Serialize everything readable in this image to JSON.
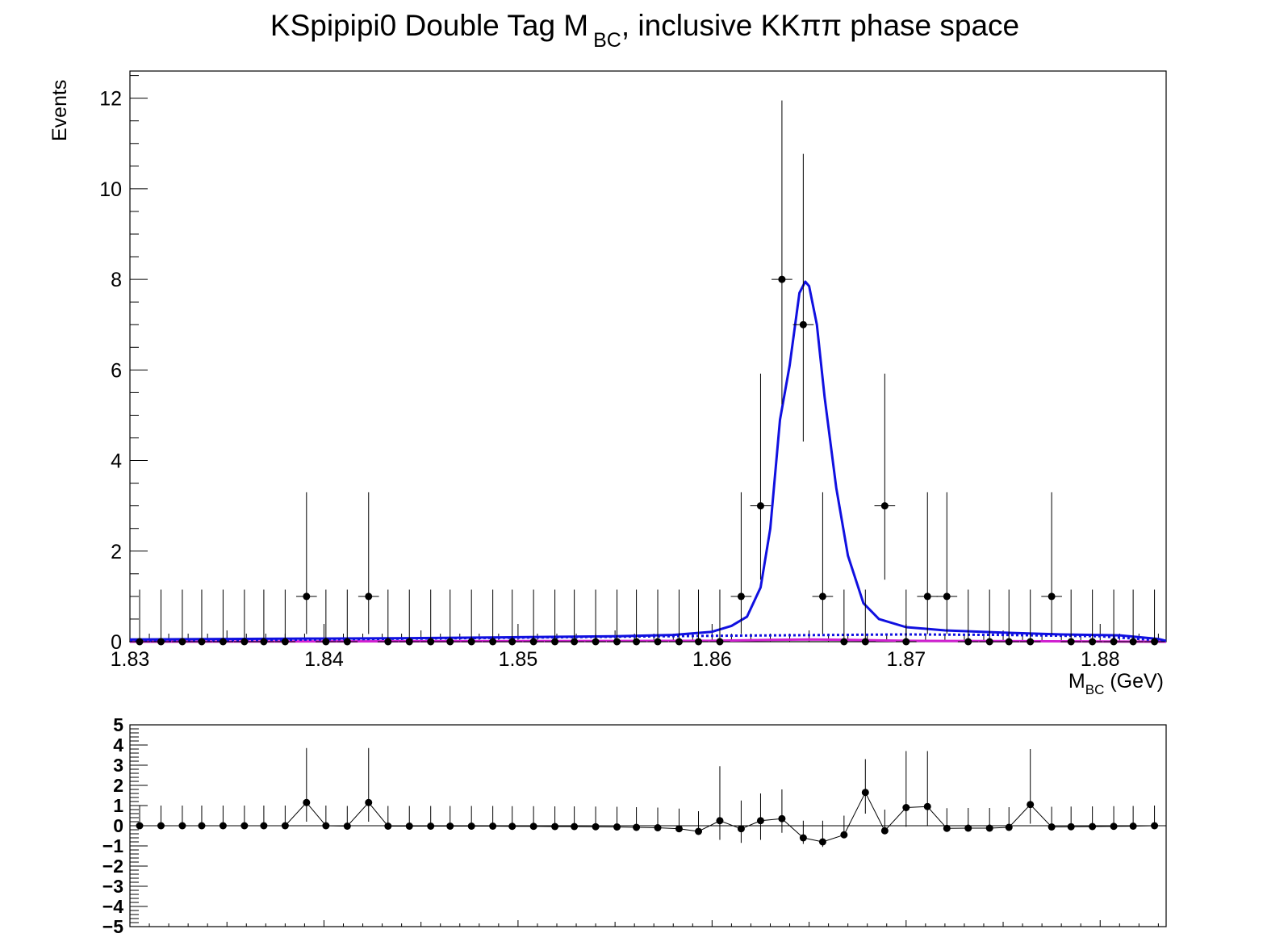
{
  "chart_data": [
    {
      "type": "scatter",
      "title": {
        "prefix": "KSpipipi0 Double Tag M",
        "subscript": "BC",
        "suffix": ", inclusive KKππ phase space"
      },
      "xlabel": {
        "main": "M",
        "subscript": "BC",
        "unit": " (GeV)"
      },
      "ylabel": "Events",
      "xlim": [
        1.83,
        1.8834
      ],
      "ylim": [
        0,
        12.6
      ],
      "x_ticks": [
        "1.83",
        "1.84",
        "1.85",
        "1.86",
        "1.87",
        "1.88"
      ],
      "y_ticks": [
        "0",
        "2",
        "4",
        "6",
        "8",
        "10",
        "12"
      ],
      "bin_half_width": 0.000534,
      "x": [
        1.8305,
        1.8316,
        1.8327,
        1.8337,
        1.8348,
        1.8359,
        1.8369,
        1.838,
        1.8391,
        1.8401,
        1.8412,
        1.8423,
        1.8433,
        1.8444,
        1.8455,
        1.8465,
        1.8476,
        1.8487,
        1.8497,
        1.8508,
        1.8519,
        1.8529,
        1.854,
        1.8551,
        1.8561,
        1.8572,
        1.8583,
        1.8593,
        1.8604,
        1.8615,
        1.8625,
        1.8636,
        1.8647,
        1.8657,
        1.8668,
        1.8679,
        1.8689,
        1.87,
        1.8711,
        1.8721,
        1.8732,
        1.8743,
        1.8753,
        1.8764,
        1.8775,
        1.8785,
        1.8796,
        1.8807,
        1.8817,
        1.8828
      ],
      "y": [
        0,
        0,
        0,
        0,
        0,
        0,
        0,
        0,
        1,
        0,
        0,
        1,
        0,
        0,
        0,
        0,
        0,
        0,
        0,
        0,
        0,
        0,
        0,
        0,
        0,
        0,
        0,
        0,
        0,
        1,
        3,
        8,
        7,
        1,
        0,
        0,
        3,
        0,
        1,
        1,
        0,
        0,
        0,
        0,
        1,
        0,
        0,
        0,
        0,
        0
      ],
      "y_err_low": [
        0,
        0,
        0,
        0,
        0,
        0,
        0,
        0,
        0.83,
        0,
        0,
        0.83,
        0,
        0,
        0,
        0,
        0,
        0,
        0,
        0,
        0,
        0,
        0,
        0,
        0,
        0,
        0,
        0,
        0,
        0.83,
        1.63,
        2.76,
        2.58,
        0.83,
        0,
        0,
        1.63,
        0,
        0.83,
        0.83,
        0,
        0,
        0,
        0,
        0.83,
        0,
        0,
        0,
        0,
        0
      ],
      "y_err_high": [
        1.15,
        1.15,
        1.15,
        1.15,
        1.15,
        1.15,
        1.15,
        1.15,
        2.3,
        1.15,
        1.15,
        2.3,
        1.15,
        1.15,
        1.15,
        1.15,
        1.15,
        1.15,
        1.15,
        1.15,
        1.15,
        1.15,
        1.15,
        1.15,
        1.15,
        1.15,
        1.15,
        1.15,
        1.15,
        2.3,
        2.92,
        3.95,
        3.77,
        2.3,
        1.15,
        1.15,
        2.92,
        1.15,
        2.3,
        2.3,
        1.15,
        1.15,
        1.15,
        1.15,
        2.3,
        1.15,
        1.15,
        1.15,
        1.15,
        1.15
      ],
      "fit_total": {
        "color": "#1010e0",
        "x": [
          1.83,
          1.835,
          1.84,
          1.845,
          1.85,
          1.855,
          1.858,
          1.86,
          1.861,
          1.8618,
          1.8625,
          1.863,
          1.8635,
          1.864,
          1.8645,
          1.8648,
          1.865,
          1.8654,
          1.8658,
          1.8664,
          1.867,
          1.8678,
          1.8686,
          1.87,
          1.872,
          1.875,
          1.878,
          1.881,
          1.883,
          1.8834
        ],
        "y": [
          0.05,
          0.06,
          0.07,
          0.08,
          0.1,
          0.12,
          0.15,
          0.22,
          0.35,
          0.55,
          1.2,
          2.5,
          4.9,
          6.1,
          7.7,
          7.95,
          7.85,
          7.0,
          5.4,
          3.4,
          1.9,
          0.85,
          0.5,
          0.32,
          0.25,
          0.2,
          0.16,
          0.14,
          0.06,
          0.02
        ]
      },
      "fit_background": {
        "color": "#1010e0",
        "style": "dotted",
        "x": [
          1.83,
          1.84,
          1.85,
          1.86,
          1.87,
          1.875,
          1.88,
          1.8834
        ],
        "y": [
          0.02,
          0.05,
          0.09,
          0.13,
          0.16,
          0.15,
          0.12,
          0.02
        ]
      },
      "fit_peaking": {
        "color": "#d020d0",
        "x": [
          1.83,
          1.86,
          1.863,
          1.865,
          1.867,
          1.87,
          1.8834
        ],
        "y": [
          0.0,
          0.02,
          0.04,
          0.05,
          0.04,
          0.02,
          0.0
        ]
      }
    },
    {
      "type": "line",
      "xlim": [
        1.83,
        1.8834
      ],
      "ylim": [
        -5,
        5
      ],
      "y_ticks": [
        "−5",
        "−4",
        "−3",
        "−2",
        "−1",
        "0",
        "1",
        "2",
        "3",
        "4",
        "5"
      ],
      "x": [
        1.8305,
        1.8316,
        1.8327,
        1.8337,
        1.8348,
        1.8359,
        1.8369,
        1.838,
        1.8391,
        1.8401,
        1.8412,
        1.8423,
        1.8433,
        1.8444,
        1.8455,
        1.8465,
        1.8476,
        1.8487,
        1.8497,
        1.8508,
        1.8519,
        1.8529,
        1.854,
        1.8551,
        1.8561,
        1.8572,
        1.8583,
        1.8593,
        1.8604,
        1.8615,
        1.8625,
        1.8636,
        1.8647,
        1.8657,
        1.8668,
        1.8679,
        1.8689,
        1.87,
        1.8711,
        1.8721,
        1.8732,
        1.8743,
        1.8753,
        1.8764,
        1.8775,
        1.8785,
        1.8796,
        1.8807,
        1.8817,
        1.8828
      ],
      "y": [
        0.0,
        0.0,
        0.0,
        0.0,
        0.0,
        0.0,
        0.0,
        0.0,
        1.15,
        0.0,
        -0.02,
        1.15,
        -0.02,
        -0.02,
        -0.02,
        -0.02,
        -0.02,
        -0.02,
        -0.03,
        -0.03,
        -0.04,
        -0.04,
        -0.05,
        -0.06,
        -0.08,
        -0.1,
        -0.15,
        -0.28,
        0.25,
        -0.15,
        0.25,
        0.35,
        -0.6,
        -0.8,
        -0.45,
        1.65,
        -0.25,
        0.9,
        0.95,
        -0.13,
        -0.12,
        -0.12,
        -0.08,
        1.05,
        -0.06,
        -0.05,
        -0.04,
        -0.03,
        -0.02,
        0.0
      ],
      "y_err_low": [
        0,
        0,
        0,
        0,
        0,
        0,
        0,
        0,
        0.95,
        0,
        0,
        0.95,
        0,
        0,
        0,
        0,
        0,
        0,
        0,
        0,
        0,
        0,
        0,
        0,
        0,
        0,
        0,
        0,
        0.95,
        0.7,
        0.95,
        0.7,
        0.3,
        0.25,
        0.0,
        1.05,
        0.0,
        0.95,
        0.95,
        0,
        0,
        0,
        0,
        0.95,
        0,
        0,
        0,
        0,
        0,
        0
      ],
      "y_err_high": [
        1.0,
        1.0,
        1.0,
        1.0,
        1.0,
        1.0,
        1.0,
        1.0,
        2.7,
        1.0,
        1.0,
        2.7,
        1.0,
        1.0,
        1.0,
        1.0,
        1.0,
        1.0,
        1.0,
        1.0,
        1.0,
        1.0,
        1.0,
        1.0,
        1.0,
        1.0,
        1.0,
        1.0,
        2.7,
        1.4,
        1.35,
        1.45,
        0.85,
        1.05,
        0.95,
        1.65,
        1.05,
        2.8,
        2.75,
        1.0,
        1.0,
        1.0,
        1.0,
        2.75,
        1.0,
        1.0,
        1.0,
        1.0,
        1.0,
        1.0
      ]
    }
  ]
}
